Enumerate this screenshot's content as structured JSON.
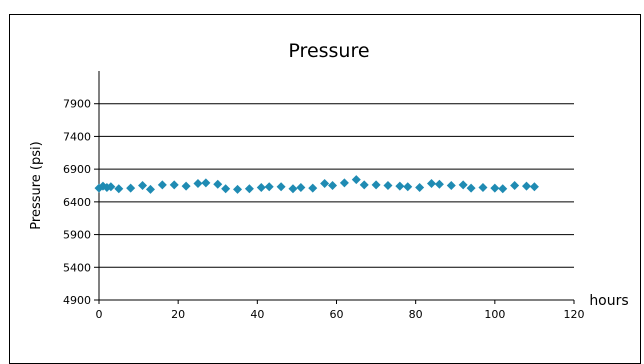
{
  "chart_data": {
    "type": "scatter",
    "title": "Pressure",
    "xlabel": "hours",
    "ylabel": "Pressure (psi)",
    "xlim": [
      0,
      120
    ],
    "ylim": [
      4900,
      8400
    ],
    "x_ticks": [
      0,
      20,
      40,
      60,
      80,
      100,
      120
    ],
    "y_ticks": [
      4900,
      5400,
      5900,
      6400,
      6900,
      7400,
      7900
    ],
    "grid": "horizontal",
    "legend": "none",
    "marker": "diamond",
    "colors": {
      "marker": "#1f8bb3",
      "axis": "#000000",
      "grid": "#000000"
    },
    "series": [
      {
        "x": [
          0,
          1,
          2,
          3,
          5,
          8,
          11,
          13,
          16,
          19,
          22,
          25,
          27,
          30,
          32,
          35,
          38,
          41,
          43,
          46,
          49,
          51,
          54,
          57,
          59,
          62,
          65,
          67,
          70,
          73,
          76,
          78,
          81,
          84,
          86,
          89,
          92,
          94,
          97,
          100,
          102,
          105,
          108,
          110
        ],
        "y": [
          6610,
          6640,
          6620,
          6630,
          6600,
          6610,
          6650,
          6590,
          6660,
          6660,
          6640,
          6680,
          6690,
          6670,
          6600,
          6590,
          6600,
          6620,
          6630,
          6630,
          6600,
          6620,
          6610,
          6680,
          6650,
          6690,
          6740,
          6660,
          6660,
          6650,
          6640,
          6630,
          6620,
          6680,
          6670,
          6650,
          6660,
          6610,
          6620,
          6610,
          6600,
          6650,
          6640,
          6630
        ]
      }
    ]
  }
}
